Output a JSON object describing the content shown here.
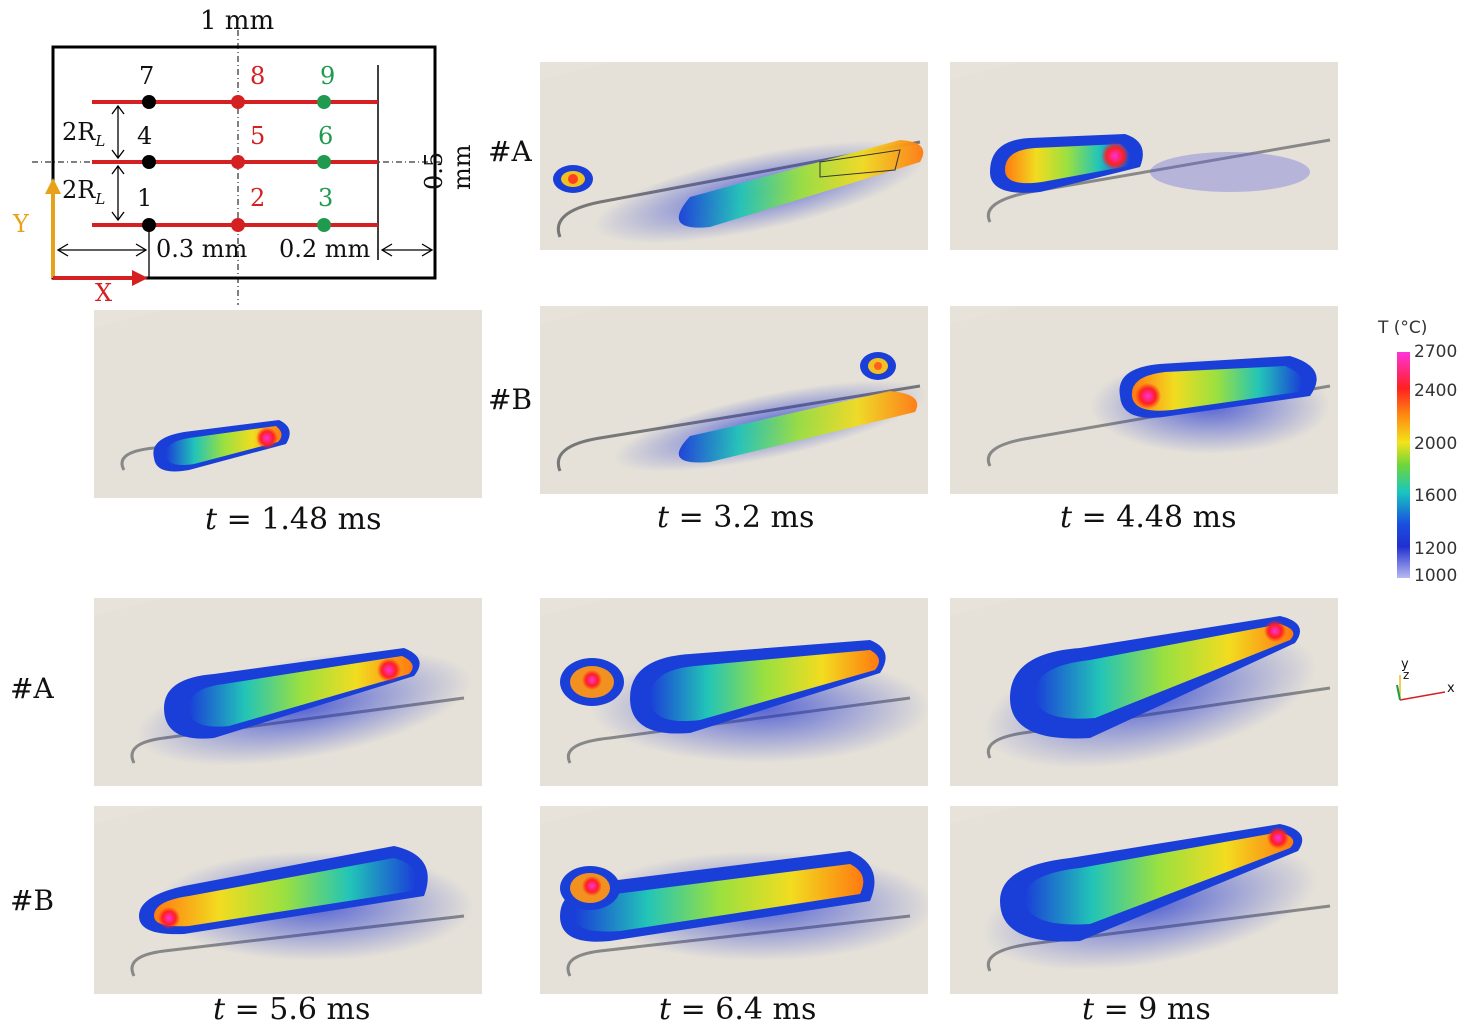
{
  "schematic": {
    "top_dim": "1 mm",
    "right_dim": "0.5 mm",
    "dim_left": "0.3 mm",
    "dim_right": "0.2 mm",
    "radius_label_1": "2R",
    "radius_label_2": "2R",
    "radius_sub": "L",
    "axis_y": "Y",
    "axis_x": "X",
    "points": [
      "1",
      "2",
      "3",
      "4",
      "5",
      "6",
      "7",
      "8",
      "9"
    ],
    "colors": {
      "track": "#d42020",
      "col1": "#000000",
      "col2": "#d42020",
      "col3": "#1f9a4f",
      "axis_y": "#e8a21a",
      "axis_x": "#d42020"
    }
  },
  "row_labels": {
    "a1": "#A",
    "b1": "#B",
    "a2": "#A",
    "b2": "#B"
  },
  "time_labels": {
    "t1": "= 1.48 ms",
    "t2": "= 3.2 ms",
    "t3": "= 4.48 ms",
    "t4": "= 5.6 ms",
    "t5": "= 6.4 ms",
    "t6": "= 9 ms",
    "var": "t"
  },
  "colorbar": {
    "title": "T (°C)",
    "ticks": [
      "2700",
      "2400",
      "2000",
      "1600",
      "1200",
      "1000"
    ],
    "stops": [
      "#ff33dd",
      "#ff2020",
      "#ff8a10",
      "#f3e31a",
      "#6fd63a",
      "#18c6c0",
      "#1a4fe0",
      "#2030d0",
      "#b8b8f0"
    ]
  },
  "triad": {
    "x": "x",
    "y": "y",
    "z": "z"
  }
}
